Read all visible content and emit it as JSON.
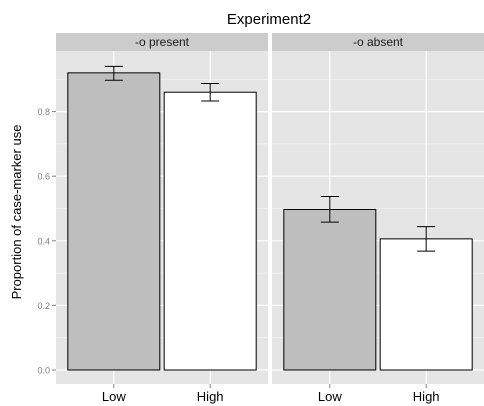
{
  "chart_data": {
    "type": "bar",
    "title": "Experiment2",
    "xlabel": "",
    "ylabel": "Proportion of case-marker use",
    "ylim": [
      0,
      1.0
    ],
    "yticks": [
      "0.0",
      "0.2",
      "0.4",
      "0.6",
      "0.8"
    ],
    "grid": true,
    "categories": [
      "Low",
      "High"
    ],
    "facets": [
      {
        "label": "-o present",
        "bars": [
          {
            "category": "Low",
            "value": 0.92,
            "error_low": 0.897,
            "error_high": 0.94,
            "fill": "#bebebe"
          },
          {
            "category": "High",
            "value": 0.86,
            "error_low": 0.833,
            "error_high": 0.887,
            "fill": "#ffffff"
          }
        ]
      },
      {
        "label": "-o absent",
        "bars": [
          {
            "category": "Low",
            "value": 0.497,
            "error_low": 0.458,
            "error_high": 0.537,
            "fill": "#bebebe"
          },
          {
            "category": "High",
            "value": 0.406,
            "error_low": 0.368,
            "error_high": 0.444,
            "fill": "#ffffff"
          }
        ]
      }
    ]
  },
  "colors": {
    "panel_bg": "#e5e5e5",
    "strip_bg": "#cccccc",
    "grid_major": "#ffffff",
    "grid_minor": "#f2f2f2",
    "bar_outline": "#000000"
  }
}
